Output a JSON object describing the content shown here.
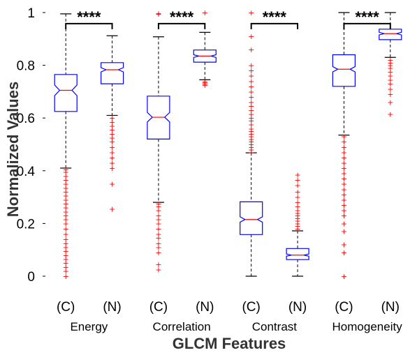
{
  "chart_data": {
    "type": "box",
    "title": "",
    "xlabel": "GLCM Features",
    "ylabel": "Normalized Values",
    "ylim": [
      0,
      1
    ],
    "yticks": [
      "0",
      "0.2",
      "0.4",
      "0.6",
      "0.8",
      "1"
    ],
    "grid": false,
    "legend": "none",
    "notched": true,
    "colors": {
      "box": "#0000ff",
      "median": "#ff0000",
      "whisker": "#000000",
      "outlier": "#ff0000",
      "significance": "#000000"
    },
    "outlier_marker": "+",
    "groups": [
      {
        "name": "Energy",
        "significance": "****",
        "boxes": [
          {
            "category": "(C)",
            "q1": 0.625,
            "median": 0.705,
            "q3": 0.765,
            "whisker_low": 0.41,
            "whisker_high": 0.995,
            "notch_low": 0.685,
            "notch_high": 0.725,
            "outliers": [
              0.0,
              0.02,
              0.035,
              0.05,
              0.065,
              0.08,
              0.095,
              0.11,
              0.125,
              0.14,
              0.16,
              0.18,
              0.2,
              0.215,
              0.23,
              0.245,
              0.26,
              0.275,
              0.29,
              0.305,
              0.32,
              0.335,
              0.35,
              0.365,
              0.38,
              0.395,
              0.405
            ]
          },
          {
            "category": "(N)",
            "q1": 0.73,
            "median": 0.783,
            "q3": 0.81,
            "whisker_low": 0.61,
            "whisker_high": 0.912,
            "notch_low": 0.775,
            "notch_high": 0.791,
            "outliers": [
              0.255,
              0.35,
              0.41,
              0.43,
              0.45,
              0.47,
              0.49,
              0.51,
              0.525,
              0.54,
              0.555,
              0.57,
              0.585,
              0.6
            ]
          }
        ]
      },
      {
        "name": "Correlation",
        "significance": "****",
        "boxes": [
          {
            "category": "(C)",
            "q1": 0.52,
            "median": 0.603,
            "q3": 0.683,
            "whisker_low": 0.28,
            "whisker_high": 0.908,
            "notch_low": 0.585,
            "notch_high": 0.621,
            "outliers": [
              0.025,
              0.045,
              0.09,
              0.11,
              0.125,
              0.145,
              0.16,
              0.18,
              0.2,
              0.215,
              0.23,
              0.25,
              0.265,
              0.275,
              0.995,
              0.998
            ]
          },
          {
            "category": "(N)",
            "q1": 0.812,
            "median": 0.835,
            "q3": 0.858,
            "whisker_low": 0.745,
            "whisker_high": 0.925,
            "notch_low": 0.83,
            "notch_high": 0.84,
            "outliers": [
              0.725,
              0.73,
              0.735,
              0.74,
              1.0
            ]
          }
        ]
      },
      {
        "name": "Contrast",
        "significance": "****",
        "boxes": [
          {
            "category": "(C)",
            "q1": 0.158,
            "median": 0.215,
            "q3": 0.282,
            "whisker_low": 0.0,
            "whisker_high": 0.468,
            "notch_low": 0.205,
            "notch_high": 0.225,
            "outliers": [
              0.47,
              0.48,
              0.49,
              0.5,
              0.51,
              0.52,
              0.53,
              0.54,
              0.55,
              0.56,
              0.575,
              0.59,
              0.6,
              0.615,
              0.63,
              0.645,
              0.66,
              0.68,
              0.7,
              0.72,
              0.74,
              0.76,
              0.78,
              0.8,
              0.86,
              0.91,
              1.0
            ]
          },
          {
            "category": "(N)",
            "q1": 0.063,
            "median": 0.08,
            "q3": 0.105,
            "whisker_low": 0.0,
            "whisker_high": 0.172,
            "notch_low": 0.076,
            "notch_high": 0.084,
            "outliers": [
              0.18,
              0.19,
              0.2,
              0.21,
              0.22,
              0.23,
              0.24,
              0.25,
              0.265,
              0.28,
              0.3,
              0.32,
              0.345,
              0.365,
              0.385
            ]
          }
        ]
      },
      {
        "name": "Homogeneity",
        "significance": "****",
        "boxes": [
          {
            "category": "(C)",
            "q1": 0.72,
            "median": 0.785,
            "q3": 0.84,
            "whisker_low": 0.535,
            "whisker_high": 1.0,
            "notch_low": 0.775,
            "notch_high": 0.795,
            "outliers": [
              0.0,
              0.09,
              0.12,
              0.17,
              0.2,
              0.23,
              0.25,
              0.27,
              0.29,
              0.31,
              0.33,
              0.35,
              0.37,
              0.39,
              0.41,
              0.43,
              0.45,
              0.47,
              0.49,
              0.51,
              0.53
            ]
          },
          {
            "category": "(N)",
            "q1": 0.897,
            "median": 0.92,
            "q3": 0.937,
            "whisker_low": 0.83,
            "whisker_high": 1.0,
            "notch_low": 0.915,
            "notch_high": 0.925,
            "outliers": [
              0.615,
              0.66,
              0.69,
              0.71,
              0.73,
              0.745,
              0.76,
              0.775,
              0.79,
              0.8,
              0.81,
              0.82
            ]
          }
        ]
      }
    ]
  }
}
